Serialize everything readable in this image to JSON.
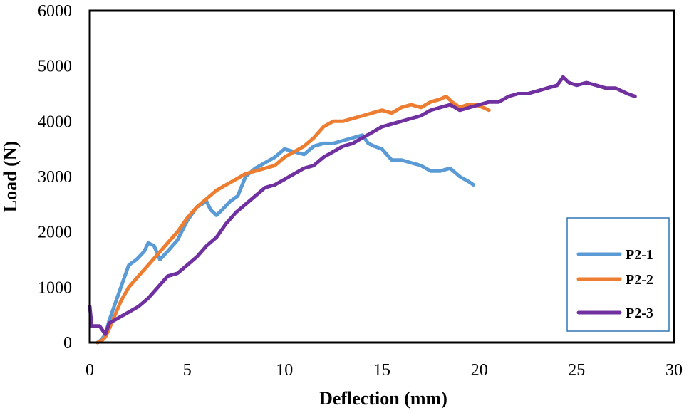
{
  "chart_data": {
    "type": "line",
    "title": "",
    "xlabel": "Deflection (mm)",
    "ylabel": "Load (N)",
    "xlim": [
      0,
      30
    ],
    "ylim": [
      0,
      6000
    ],
    "xticks": [
      0,
      5,
      10,
      15,
      20,
      25,
      30
    ],
    "yticks": [
      0,
      1000,
      2000,
      3000,
      4000,
      5000,
      6000
    ],
    "grid": false,
    "legend_position": "bottom-right",
    "series": [
      {
        "name": "P2-1",
        "color": "#5B9BD5",
        "x": [
          0.4,
          0.6,
          0.8,
          1.0,
          1.3,
          1.6,
          2.0,
          2.4,
          2.8,
          3.0,
          3.3,
          3.6,
          4.0,
          4.5,
          5.0,
          5.5,
          6.0,
          6.2,
          6.5,
          6.8,
          7.2,
          7.6,
          8.0,
          8.5,
          9.0,
          9.5,
          10.0,
          10.5,
          11.0,
          11.5,
          12.0,
          12.5,
          13.0,
          13.5,
          14.0,
          14.3,
          14.6,
          15.0,
          15.5,
          16.0,
          16.5,
          17.0,
          17.5,
          18.0,
          18.5,
          19.0,
          19.5,
          19.7
        ],
        "y": [
          0,
          50,
          150,
          400,
          700,
          1000,
          1400,
          1500,
          1650,
          1800,
          1750,
          1500,
          1650,
          1850,
          2200,
          2450,
          2550,
          2400,
          2300,
          2400,
          2550,
          2650,
          3000,
          3150,
          3250,
          3350,
          3500,
          3450,
          3400,
          3550,
          3600,
          3600,
          3650,
          3700,
          3750,
          3600,
          3550,
          3500,
          3300,
          3300,
          3250,
          3200,
          3100,
          3100,
          3150,
          3000,
          2900,
          2850
        ]
      },
      {
        "name": "P2-2",
        "color": "#ED7D31",
        "x": [
          0.4,
          0.6,
          0.8,
          1.0,
          1.3,
          1.6,
          2.0,
          2.5,
          3.0,
          3.5,
          4.0,
          4.5,
          5.0,
          5.5,
          6.0,
          6.5,
          7.0,
          7.5,
          8.0,
          8.5,
          9.0,
          9.5,
          10.0,
          10.5,
          11.0,
          11.5,
          12.0,
          12.5,
          13.0,
          13.5,
          14.0,
          14.5,
          15.0,
          15.5,
          16.0,
          16.5,
          17.0,
          17.5,
          18.0,
          18.3,
          18.6,
          19.0,
          19.4,
          19.8,
          20.2,
          20.5
        ],
        "y": [
          0,
          30,
          100,
          250,
          500,
          750,
          1000,
          1200,
          1400,
          1600,
          1800,
          2000,
          2250,
          2450,
          2600,
          2750,
          2850,
          2950,
          3050,
          3100,
          3150,
          3200,
          3350,
          3450,
          3550,
          3700,
          3900,
          4000,
          4000,
          4050,
          4100,
          4150,
          4200,
          4150,
          4250,
          4300,
          4250,
          4350,
          4400,
          4450,
          4350,
          4250,
          4300,
          4300,
          4250,
          4200
        ]
      },
      {
        "name": "P2-3",
        "color": "#7030A0",
        "x": [
          0.0,
          0.1,
          0.5,
          0.8,
          1.0,
          1.5,
          2.0,
          2.5,
          3.0,
          3.5,
          4.0,
          4.5,
          5.0,
          5.5,
          6.0,
          6.5,
          7.0,
          7.5,
          8.0,
          8.5,
          9.0,
          9.5,
          10.0,
          10.5,
          11.0,
          11.5,
          12.0,
          12.5,
          13.0,
          13.5,
          14.0,
          14.5,
          15.0,
          15.5,
          16.0,
          16.5,
          17.0,
          17.5,
          18.0,
          18.5,
          19.0,
          19.5,
          20.0,
          20.5,
          21.0,
          21.5,
          22.0,
          22.5,
          23.0,
          23.5,
          24.0,
          24.3,
          24.6,
          25.0,
          25.5,
          26.0,
          26.5,
          27.0,
          27.3,
          27.6,
          28.0
        ],
        "y": [
          650,
          300,
          300,
          150,
          350,
          450,
          550,
          650,
          800,
          1000,
          1200,
          1250,
          1400,
          1550,
          1750,
          1900,
          2150,
          2350,
          2500,
          2650,
          2800,
          2850,
          2950,
          3050,
          3150,
          3200,
          3350,
          3450,
          3550,
          3600,
          3700,
          3800,
          3900,
          3950,
          4000,
          4050,
          4100,
          4200,
          4250,
          4300,
          4200,
          4250,
          4300,
          4350,
          4350,
          4450,
          4500,
          4500,
          4550,
          4600,
          4650,
          4800,
          4700,
          4650,
          4700,
          4650,
          4600,
          4600,
          4550,
          4500,
          4450
        ]
      }
    ]
  }
}
